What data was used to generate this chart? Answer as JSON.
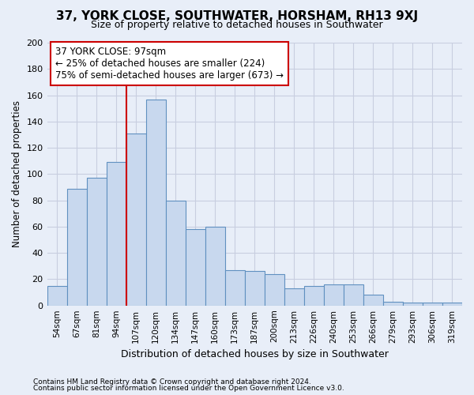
{
  "title": "37, YORK CLOSE, SOUTHWATER, HORSHAM, RH13 9XJ",
  "subtitle": "Size of property relative to detached houses in Southwater",
  "xlabel": "Distribution of detached houses by size in Southwater",
  "ylabel": "Number of detached properties",
  "bar_labels": [
    "54sqm",
    "67sqm",
    "81sqm",
    "94sqm",
    "107sqm",
    "120sqm",
    "134sqm",
    "147sqm",
    "160sqm",
    "173sqm",
    "187sqm",
    "200sqm",
    "213sqm",
    "226sqm",
    "240sqm",
    "253sqm",
    "266sqm",
    "279sqm",
    "293sqm",
    "306sqm",
    "319sqm"
  ],
  "bar_values": [
    15,
    89,
    97,
    109,
    131,
    157,
    80,
    58,
    60,
    27,
    26,
    24,
    13,
    15,
    16,
    16,
    8,
    3,
    2,
    2,
    2
  ],
  "bar_color": "#c8d8ee",
  "bar_edge_color": "#6090c0",
  "vline_color": "#cc0000",
  "annotation_title": "37 YORK CLOSE: 97sqm",
  "annotation_line1": "← 25% of detached houses are smaller (224)",
  "annotation_line2": "75% of semi-detached houses are larger (673) →",
  "annotation_box_color": "#ffffff",
  "annotation_box_edge": "#cc0000",
  "ylim": [
    0,
    200
  ],
  "yticks": [
    0,
    20,
    40,
    60,
    80,
    100,
    120,
    140,
    160,
    180,
    200
  ],
  "footnote1": "Contains HM Land Registry data © Crown copyright and database right 2024.",
  "footnote2": "Contains public sector information licensed under the Open Government Licence v3.0.",
  "bg_color": "#e8eef8",
  "grid_color": "#c8cee0",
  "title_fontsize": 11,
  "subtitle_fontsize": 9
}
